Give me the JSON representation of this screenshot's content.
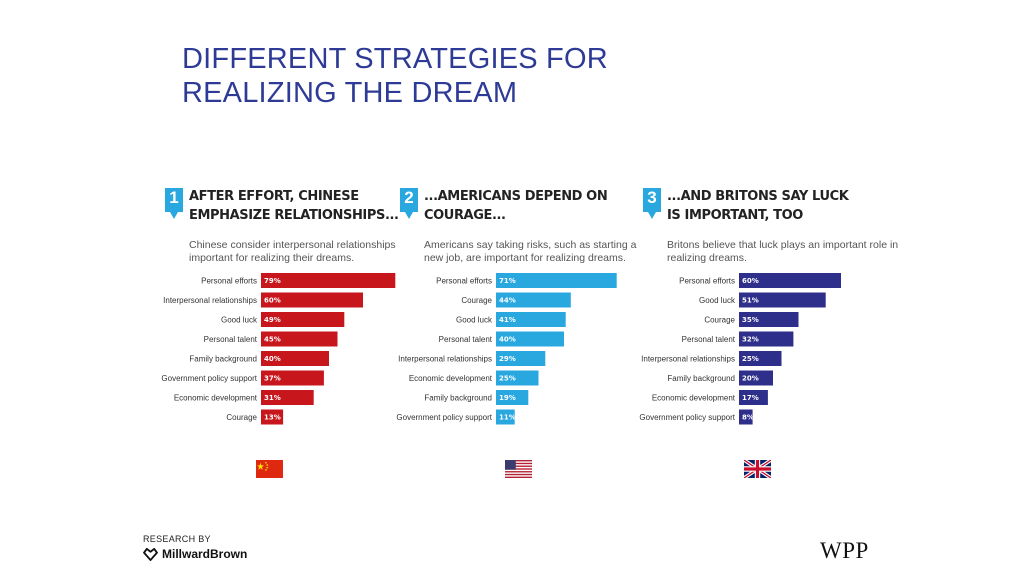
{
  "title": "DIFFERENT STRATEGIES FOR\nREALIZING THE DREAM",
  "panels": [
    {
      "number": "1",
      "heading": "AFTER EFFORT, CHINESE\nEMPHASIZE RELATIONSHIPS...",
      "subtitle": "Chinese consider interpersonal relationships important for realizing their dreams.",
      "color": "#c8161d",
      "flag": "china-flag"
    },
    {
      "number": "2",
      "heading": "...AMERICANS DEPEND ON COURAGE...",
      "subtitle": "Americans say taking risks, such as starting a new job, are important for realizing dreams.",
      "color": "#29a8e0",
      "flag": "usa-flag"
    },
    {
      "number": "3",
      "heading": "...AND BRITONS SAY LUCK\nIS IMPORTANT, TOO",
      "subtitle": "Britons believe that luck plays an important role in realizing dreams.",
      "color": "#2e2f8a",
      "flag": "uk-flag"
    }
  ],
  "chart_data": [
    {
      "type": "bar",
      "orientation": "horizontal",
      "categories": [
        "Personal efforts",
        "Interpersonal relationships",
        "Good luck",
        "Personal talent",
        "Family background",
        "Government policy support",
        "Economic development",
        "Courage"
      ],
      "values": [
        79,
        60,
        49,
        45,
        40,
        37,
        31,
        13
      ],
      "value_labels": [
        "79%",
        "60%",
        "49%",
        "45%",
        "40%",
        "37%",
        "31%",
        "13%"
      ],
      "unit": "%",
      "color": "#c8161d"
    },
    {
      "type": "bar",
      "orientation": "horizontal",
      "categories": [
        "Personal efforts",
        "Courage",
        "Good luck",
        "Personal talent",
        "Interpersonal relationships",
        "Economic development",
        "Family background",
        "Government policy support"
      ],
      "values": [
        71,
        44,
        41,
        40,
        29,
        25,
        19,
        11
      ],
      "value_labels": [
        "71%",
        "44%",
        "41%",
        "40%",
        "29%",
        "25%",
        "19%",
        "11%"
      ],
      "unit": "%",
      "color": "#29a8e0"
    },
    {
      "type": "bar",
      "orientation": "horizontal",
      "categories": [
        "Personal efforts",
        "Good luck",
        "Courage",
        "Personal talent",
        "Interpersonal relationships",
        "Family background",
        "Economic development",
        "Government policy support"
      ],
      "values": [
        60,
        51,
        35,
        32,
        25,
        20,
        17,
        8
      ],
      "value_labels": [
        "60%",
        "51%",
        "35%",
        "32%",
        "25%",
        "20%",
        "17%",
        "8%"
      ],
      "unit": "%",
      "color": "#2e2f8a"
    }
  ],
  "footer": {
    "research_by": "RESEARCH BY",
    "brand": "MillwardBrown",
    "brand_icon": "millwardbrown-logo-icon",
    "wpp": "WPP"
  }
}
